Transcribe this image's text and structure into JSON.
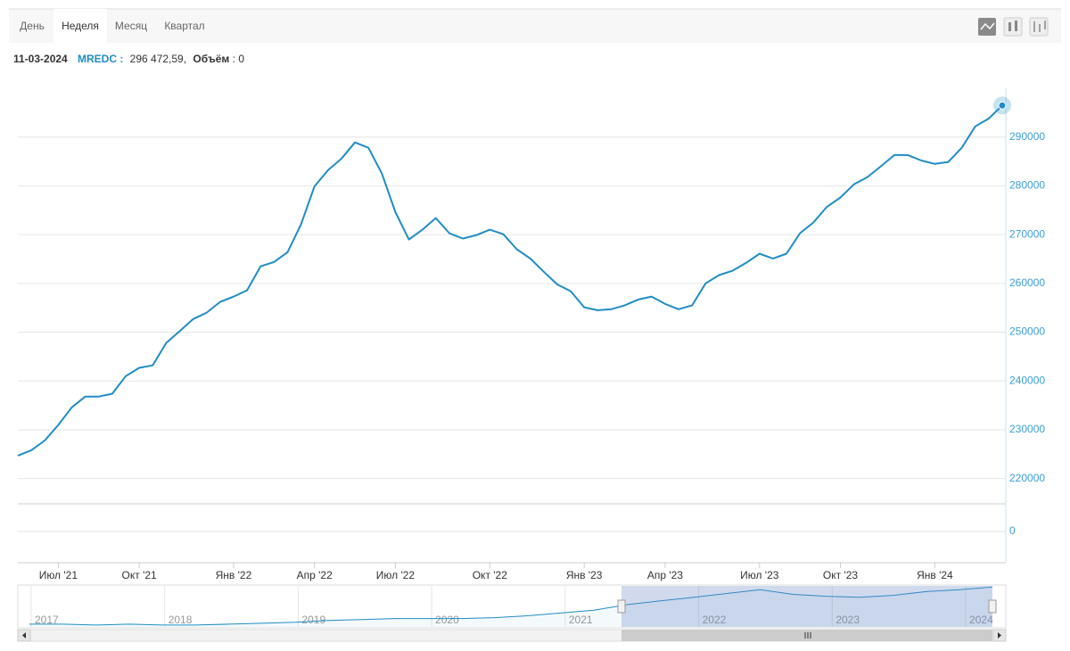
{
  "tabs": [
    "День",
    "Неделя",
    "Месяц",
    "Квартал"
  ],
  "selected_tab": 1,
  "tooltip": {
    "date": "11-03-2024",
    "series": "MREDC :",
    "value": "296 472,59,",
    "volume_label": "Объём",
    "volume_value": ": 0"
  },
  "chart_data": [
    {
      "type": "line",
      "color": "#1f8dc6",
      "grid": true,
      "categories": [
        null,
        null,
        null,
        "Июл '21",
        null,
        null,
        null,
        null,
        null,
        "Окт '21",
        null,
        null,
        null,
        null,
        null,
        null,
        "Янв '22",
        null,
        null,
        null,
        null,
        null,
        "Апр '22",
        null,
        null,
        null,
        null,
        null,
        "Июл '22",
        null,
        null,
        null,
        null,
        null,
        null,
        "Окт '22",
        null,
        null,
        null,
        null,
        null,
        null,
        "Янв '23",
        null,
        null,
        null,
        null,
        null,
        "Апр '23",
        null,
        null,
        null,
        null,
        null,
        null,
        "Июл '23",
        null,
        null,
        null,
        null,
        null,
        "Окт '23",
        null,
        null,
        null,
        null,
        null,
        null,
        "Янв '24",
        null,
        null,
        null,
        null,
        null
      ],
      "values": [
        224700,
        225800,
        227800,
        231000,
        234600,
        236800,
        236800,
        237400,
        241000,
        242700,
        243200,
        247800,
        250200,
        252700,
        254000,
        256200,
        257300,
        258600,
        263500,
        264400,
        266400,
        272100,
        279900,
        283200,
        285600,
        288900,
        287800,
        282500,
        274600,
        269000,
        271000,
        273400,
        270300,
        269200,
        269900,
        271000,
        270100,
        267000,
        265100,
        262400,
        259800,
        258400,
        255100,
        254500,
        254700,
        255500,
        256700,
        257300,
        255800,
        254700,
        255500,
        260000,
        261700,
        262600,
        264200,
        266100,
        265100,
        266100,
        270300,
        272500,
        275700,
        277600,
        280300,
        281800,
        284000,
        286300,
        286300,
        285200,
        284500,
        284900,
        287800,
        292200,
        293800,
        296472.59
      ],
      "ylim": [
        215000,
        300000
      ],
      "yticks": [
        220000,
        230000,
        240000,
        250000,
        260000,
        270000,
        280000,
        290000
      ]
    },
    {
      "type": "bar",
      "yticks": [
        0
      ]
    },
    {
      "type": "area",
      "color": "#1f8dc6",
      "values": [
        160100,
        160100,
        156700,
        160100,
        156700,
        156700,
        160100,
        163500,
        166900,
        173700,
        177100,
        180500,
        180500,
        180500,
        183900,
        190700,
        200900,
        211100,
        231500,
        245100,
        258700,
        272300,
        285900,
        268900,
        262100,
        258700,
        265500,
        279100,
        285900,
        296100
      ],
      "ylim": [
        150000,
        300000
      ],
      "xlim": [
        2016.9,
        2024.2
      ],
      "xticks": [
        2017,
        2018,
        2019,
        2020,
        2021,
        2022,
        2023,
        2024
      ]
    }
  ]
}
